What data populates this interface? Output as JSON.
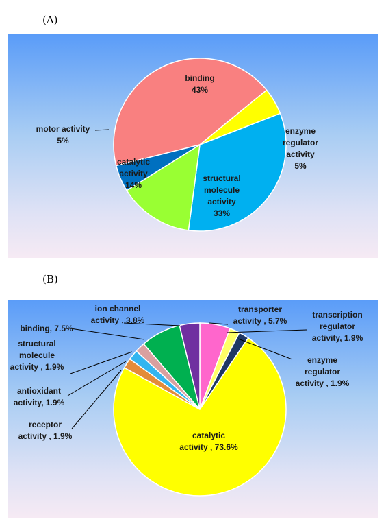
{
  "panels": {
    "a_label": "(A)",
    "b_label": "(B)"
  },
  "chart_data": [
    {
      "type": "pie",
      "panel": "A",
      "slices": [
        {
          "label": [
            "binding",
            "43%"
          ],
          "value": 43,
          "color": "#f98080"
        },
        {
          "label": [
            "enzyme",
            "regulator",
            "activity",
            "5%"
          ],
          "value": 5,
          "color": "#ffff00"
        },
        {
          "label": [
            "structural",
            "molecule",
            "activity",
            "33%"
          ],
          "value": 33,
          "color": "#00b0f0"
        },
        {
          "label": [
            "catalytic",
            "activity",
            "14%"
          ],
          "value": 14,
          "color": "#99ff33"
        },
        {
          "label": [
            "motor activity",
            "5%"
          ],
          "value": 5,
          "color": "#0070c0"
        }
      ]
    },
    {
      "type": "pie",
      "panel": "B",
      "slices": [
        {
          "label": [
            "transporter",
            "activity , 5.7%"
          ],
          "value": 5.7,
          "color": "#ff66cc"
        },
        {
          "label": [
            "transcription",
            "regulator",
            "activity, 1.9%"
          ],
          "value": 1.9,
          "color": "#ffff66"
        },
        {
          "label": [
            "enzyme",
            "regulator",
            "activity , 1.9%"
          ],
          "value": 1.9,
          "color": "#1f3864"
        },
        {
          "label": [
            "catalytic",
            "activity , 73.6%"
          ],
          "value": 73.6,
          "color": "#ffff00"
        },
        {
          "label": [
            "receptor",
            "activity , 1.9%"
          ],
          "value": 1.9,
          "color": "#e38b3a"
        },
        {
          "label": [
            "antioxidant",
            "activity, 1.9%"
          ],
          "value": 1.9,
          "color": "#33b5f0"
        },
        {
          "label": [
            "structural",
            "molecule",
            "activity , 1.9%"
          ],
          "value": 1.9,
          "color": "#d9a0a0"
        },
        {
          "label": [
            "binding, 7.5%"
          ],
          "value": 7.5,
          "color": "#00b050"
        },
        {
          "label": [
            "ion channel",
            "activity , 3.8%"
          ],
          "value": 3.8,
          "color": "#7030a0"
        }
      ]
    }
  ]
}
